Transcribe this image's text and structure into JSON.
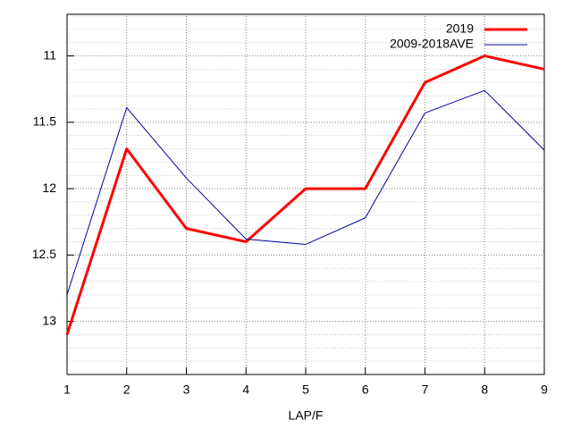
{
  "chart_data": {
    "type": "line",
    "xlabel": "LAP/F",
    "x": [
      1,
      2,
      3,
      4,
      5,
      6,
      7,
      8,
      9
    ],
    "series": [
      {
        "name": "2019",
        "color": "#ff0000",
        "width": 3,
        "values": [
          13.1,
          11.7,
          12.3,
          12.4,
          12.0,
          12.0,
          11.2,
          11.0,
          11.1
        ]
      },
      {
        "name": "2009-2018AVE",
        "color": "#0000a0",
        "width": 1,
        "values": [
          12.8,
          11.39,
          11.92,
          12.38,
          12.42,
          12.22,
          11.43,
          11.26,
          11.71
        ]
      }
    ],
    "xlim": [
      1,
      9
    ],
    "xticks": [
      1,
      2,
      3,
      4,
      5,
      6,
      7,
      8,
      9
    ],
    "ylim": [
      10.7,
      13.4
    ],
    "y_reversed": true,
    "yticks": [
      11,
      11.5,
      12,
      12.5,
      13
    ],
    "y_minor_step": 0.1,
    "grid": true,
    "legend": "top-right"
  }
}
